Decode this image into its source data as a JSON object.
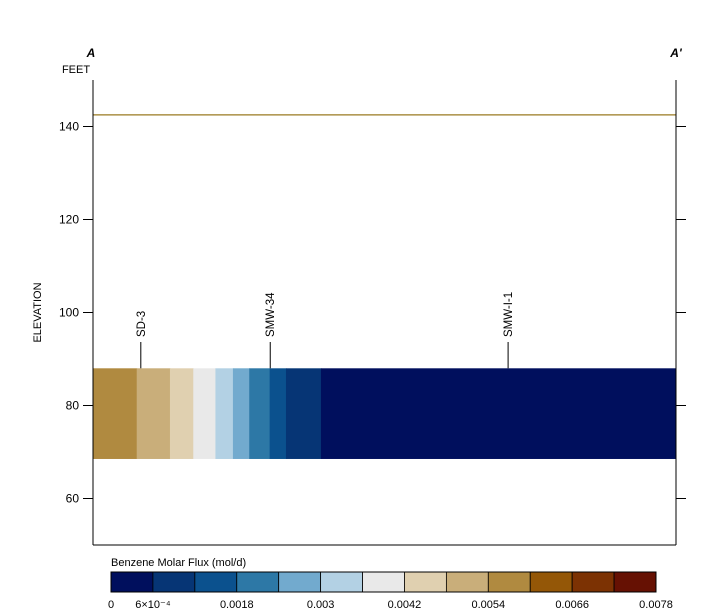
{
  "chart_data": {
    "type": "heatmap",
    "section_start_label": "A",
    "section_end_label": "A'",
    "units_label": "FEET",
    "ylabel": "ELEVATION",
    "ylim": [
      50,
      150
    ],
    "yticks": [
      60,
      80,
      100,
      120,
      140
    ],
    "x_domain": [
      0,
      100
    ],
    "surface_elevation": 142.5,
    "band": {
      "top": 88,
      "bottom": 68.5
    },
    "segments": [
      {
        "x0": 0,
        "x1": 7.5,
        "color": "#b08a40"
      },
      {
        "x0": 7.5,
        "x1": 13.2,
        "color": "#c9ae7a"
      },
      {
        "x0": 13.2,
        "x1": 17.2,
        "color": "#e0d0b0"
      },
      {
        "x0": 17.2,
        "x1": 21.0,
        "color": "#e9e9e9"
      },
      {
        "x0": 21.0,
        "x1": 24.0,
        "color": "#b3d1e4"
      },
      {
        "x0": 24.0,
        "x1": 26.8,
        "color": "#72aace"
      },
      {
        "x0": 26.8,
        "x1": 30.3,
        "color": "#2d78a6"
      },
      {
        "x0": 30.3,
        "x1": 33.1,
        "color": "#0b518e"
      },
      {
        "x0": 33.1,
        "x1": 39.1,
        "color": "#063575"
      },
      {
        "x0": 39.1,
        "x1": 100,
        "color": "#000f5d"
      }
    ],
    "wells": [
      {
        "name": "SD-3",
        "x": 8.2
      },
      {
        "name": "SMW-34",
        "x": 30.4
      },
      {
        "name": "SMW-I-1",
        "x": 71.2
      }
    ],
    "legend": {
      "title": "Benzene Molar Flux (mol/d)",
      "colors": [
        "#000f5d",
        "#063575",
        "#0b518e",
        "#2d78a6",
        "#72aace",
        "#b3d1e4",
        "#e9e9e9",
        "#e0d0b0",
        "#c9ae7a",
        "#b08a40",
        "#945707",
        "#7c3203",
        "#661103"
      ],
      "min": 0,
      "max": 0.0078,
      "tick_values": [
        0,
        0.0006,
        0.0018,
        0.003,
        0.0042,
        0.0054,
        0.0066,
        0.0078
      ],
      "tick_labels": [
        "0",
        "6×10⁻⁴",
        "0.0018",
        "0.003",
        "0.0042",
        "0.0054",
        "0.0066",
        "0.0078"
      ]
    },
    "colors": {
      "surface_line": "#9a7a20",
      "frame": "#000000"
    }
  }
}
